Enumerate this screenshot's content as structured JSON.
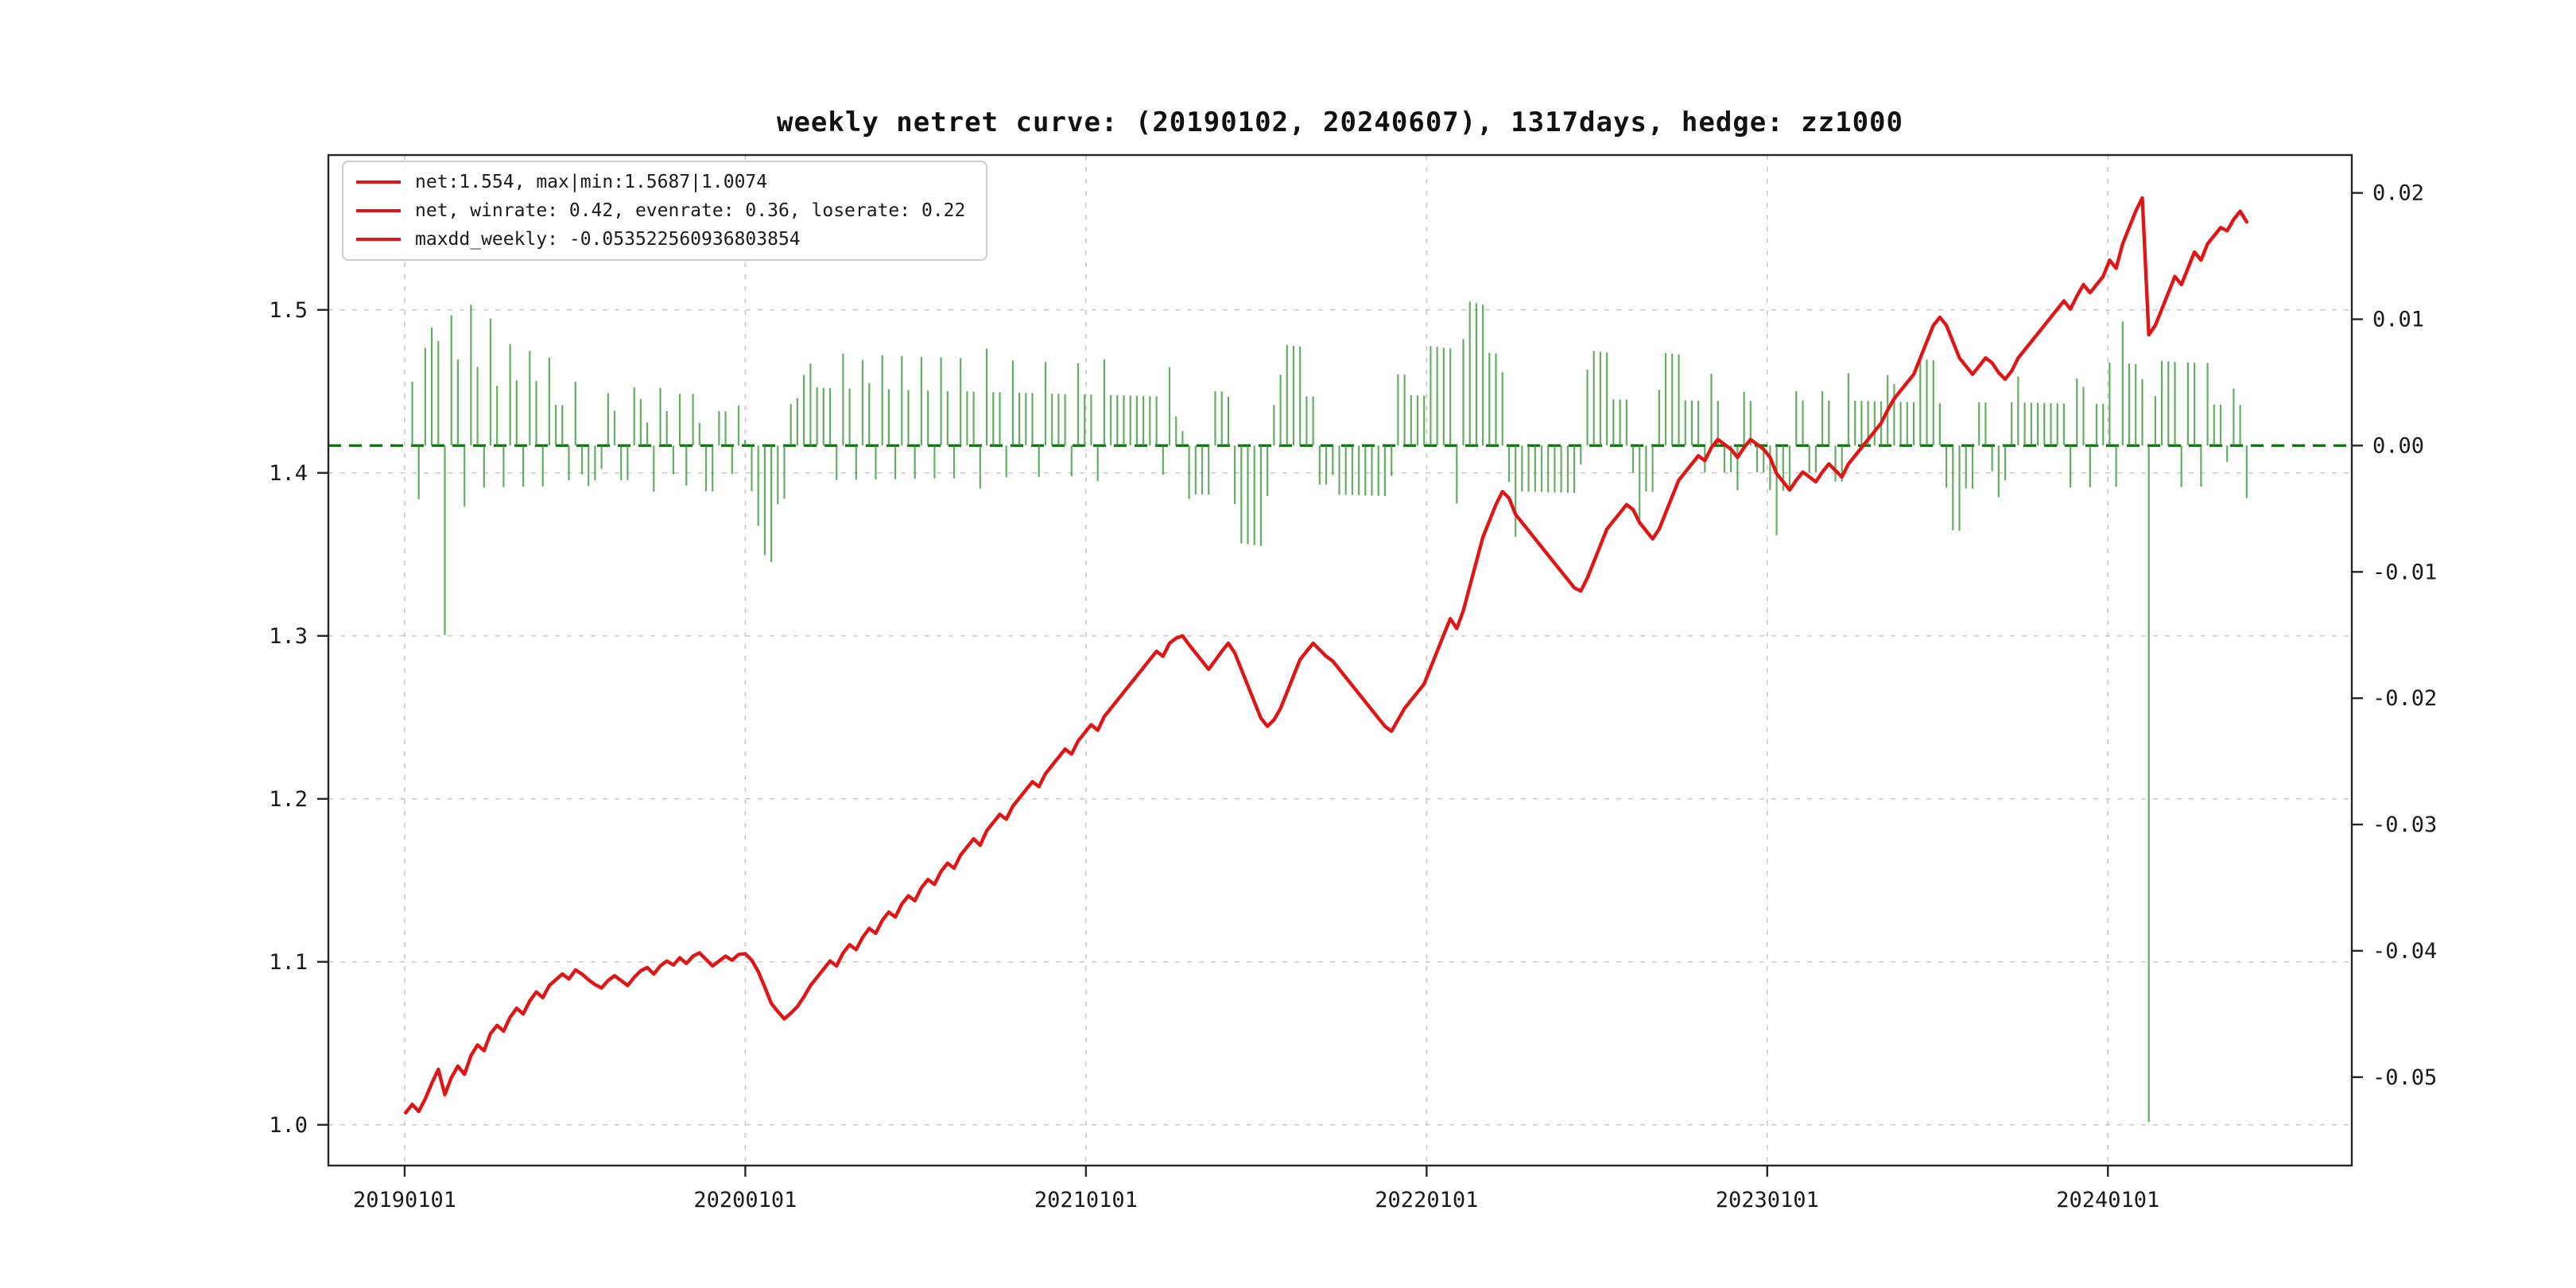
{
  "figure": {
    "title": "weekly netret curve: (20190102, 20240607), 1317days, hedge: zz1000",
    "legend": [
      "net:1.554, max|min:1.5687|1.0074",
      "net, winrate: 0.42, evenrate: 0.36, loserate: 0.22",
      "maxdd_weekly: -0.053522560936803854"
    ],
    "colors": {
      "net_line": "#e01515",
      "bars": "#3d9a3d",
      "zero_line": "#008000",
      "grid": "#c9c9c9",
      "axis": "#262626"
    }
  },
  "axes": {
    "x_tick_labels": [
      "20190101",
      "20200101",
      "20210101",
      "20220101",
      "20230101",
      "20240101"
    ],
    "x_tick_years": [
      2019,
      2020,
      2021,
      2022,
      2023,
      2024
    ],
    "x_range_years": [
      2018.776,
      2024.716
    ],
    "left_tick_labels": [
      "1.0",
      "1.1",
      "1.2",
      "1.3",
      "1.4",
      "1.5"
    ],
    "left_ticks": [
      1.0,
      1.1,
      1.2,
      1.3,
      1.4,
      1.5
    ],
    "left_range": [
      0.975,
      1.595
    ],
    "right_tick_labels": [
      "0.02",
      "0.01",
      "0.00",
      "-0.01",
      "-0.02",
      "-0.03",
      "-0.04",
      "-0.05"
    ],
    "right_ticks": [
      0.02,
      0.01,
      0.0,
      -0.01,
      -0.02,
      -0.03,
      -0.04,
      -0.05
    ],
    "right_range": [
      -0.057,
      0.023
    ],
    "grid": true
  },
  "chart_data": {
    "type": "line+bar",
    "title": "weekly netret curve: (20190102, 20240607), 1317days, hedge: zz1000",
    "x_start_date": "20190102",
    "x_start_year_decimal": 2019.003,
    "x_freq": "weekly",
    "stats": {
      "net": 1.554,
      "max": 1.5687,
      "min": 1.0074,
      "winrate": 0.42,
      "evenrate": 0.36,
      "loserate": 0.22,
      "maxdd_weekly": -0.053522560936803854,
      "days": 1317,
      "hedge": "zz1000",
      "period_start": "20190102",
      "period_end": "20240607"
    },
    "series": [
      {
        "name": "net (cumulative net value, left axis, red line)",
        "type": "line",
        "axis": "left",
        "values": [
          1.0074,
          1.0125,
          1.0082,
          1.016,
          1.0255,
          1.034,
          1.0185,
          1.029,
          1.036,
          1.031,
          1.0425,
          1.049,
          1.0455,
          1.056,
          1.061,
          1.0575,
          1.066,
          1.0715,
          1.068,
          1.076,
          1.0815,
          1.078,
          1.0855,
          1.089,
          1.0925,
          1.0895,
          1.095,
          1.0925,
          1.089,
          1.086,
          1.084,
          1.0885,
          1.0915,
          1.0885,
          1.0855,
          1.0905,
          1.0945,
          1.0965,
          1.0925,
          1.0975,
          1.1005,
          1.098,
          1.1025,
          1.099,
          1.1035,
          1.1055,
          1.1015,
          1.0975,
          1.1005,
          1.1035,
          1.101,
          1.1045,
          1.105,
          1.101,
          1.094,
          1.0845,
          1.0745,
          1.0695,
          1.065,
          1.0685,
          1.0725,
          1.0785,
          1.0855,
          1.0905,
          1.0955,
          1.1005,
          1.0975,
          1.1055,
          1.1105,
          1.1075,
          1.115,
          1.1205,
          1.1175,
          1.1255,
          1.1305,
          1.1275,
          1.1355,
          1.1405,
          1.1375,
          1.1455,
          1.1505,
          1.1475,
          1.1555,
          1.1605,
          1.1575,
          1.1655,
          1.1705,
          1.1755,
          1.1715,
          1.1805,
          1.1855,
          1.1905,
          1.1875,
          1.1955,
          1.2005,
          1.2055,
          1.2105,
          1.2075,
          1.2155,
          1.2205,
          1.2255,
          1.2305,
          1.2275,
          1.2355,
          1.2405,
          1.2455,
          1.242,
          1.2505,
          1.2555,
          1.2605,
          1.2655,
          1.2705,
          1.2755,
          1.2805,
          1.2855,
          1.2905,
          1.2875,
          1.2955,
          1.2985,
          1.3,
          1.2945,
          1.2895,
          1.2845,
          1.2795,
          1.285,
          1.2905,
          1.2955,
          1.2895,
          1.2795,
          1.2695,
          1.2595,
          1.2495,
          1.2445,
          1.2485,
          1.2555,
          1.2655,
          1.2755,
          1.2855,
          1.2905,
          1.2955,
          1.2915,
          1.2875,
          1.2845,
          1.2795,
          1.2745,
          1.2695,
          1.2645,
          1.2595,
          1.2545,
          1.2495,
          1.2445,
          1.2415,
          1.2485,
          1.2555,
          1.2605,
          1.2655,
          1.2705,
          1.2805,
          1.2905,
          1.3005,
          1.3105,
          1.3045,
          1.3155,
          1.3305,
          1.3455,
          1.3605,
          1.3705,
          1.3805,
          1.3885,
          1.3845,
          1.3745,
          1.3695,
          1.3645,
          1.3595,
          1.3545,
          1.3495,
          1.3445,
          1.3395,
          1.3345,
          1.3295,
          1.3275,
          1.3355,
          1.3455,
          1.3555,
          1.3655,
          1.3705,
          1.3755,
          1.3805,
          1.3775,
          1.3695,
          1.3645,
          1.3595,
          1.3655,
          1.3755,
          1.3855,
          1.3955,
          1.4005,
          1.4055,
          1.4105,
          1.4075,
          1.4155,
          1.4205,
          1.4175,
          1.4145,
          1.4095,
          1.4155,
          1.4205,
          1.4175,
          1.4145,
          1.4095,
          1.3995,
          1.3945,
          1.3895,
          1.3955,
          1.4005,
          1.3975,
          1.3945,
          1.4005,
          1.4055,
          1.4015,
          1.3975,
          1.4055,
          1.4105,
          1.4155,
          1.4205,
          1.4255,
          1.4305,
          1.4385,
          1.4455,
          1.4505,
          1.4555,
          1.4605,
          1.4705,
          1.4805,
          1.4905,
          1.4955,
          1.4905,
          1.4805,
          1.4705,
          1.4655,
          1.4605,
          1.4655,
          1.4705,
          1.4675,
          1.4615,
          1.4575,
          1.4625,
          1.4705,
          1.4755,
          1.4805,
          1.4855,
          1.4905,
          1.4955,
          1.5005,
          1.5055,
          1.5005,
          1.5085,
          1.5155,
          1.5105,
          1.5155,
          1.5205,
          1.5305,
          1.5255,
          1.5405,
          1.5505,
          1.5605,
          1.5687,
          1.4847,
          1.4905,
          1.5005,
          1.5105,
          1.5205,
          1.5155,
          1.5255,
          1.5355,
          1.5305,
          1.5405,
          1.5455,
          1.5505,
          1.5485,
          1.5555,
          1.5605,
          1.554
        ]
      },
      {
        "name": "weekly return (right axis, green bars)",
        "type": "bar",
        "axis": "right",
        "derived_from": "pct_change of net series values (net[i]/net[i-1] - 1)"
      }
    ]
  }
}
